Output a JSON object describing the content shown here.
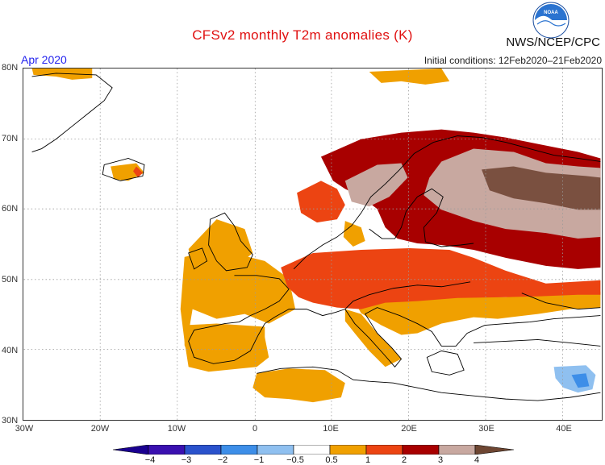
{
  "header": {
    "title": "CFSv2 monthly T2m anomalies (K)",
    "period": "Apr 2020",
    "initial_conditions": "Initial conditions: 12Feb2020–21Feb2020",
    "agency": "NWS/NCEP/CPC",
    "logo_text": "NOAA",
    "logo_icon": "noaa-logo-icon"
  },
  "map": {
    "projection": "lat-lon",
    "lat_ticks": [
      "80N",
      "70N",
      "60N",
      "50N",
      "40N",
      "30N"
    ],
    "lon_ticks": [
      "30W",
      "20W",
      "10W",
      "0",
      "10E",
      "20E",
      "30E",
      "40E"
    ],
    "lon_range": [
      -30,
      48
    ],
    "lat_range": [
      30,
      80
    ],
    "gridlines": "dotted"
  },
  "legend": {
    "labels": [
      "−4",
      "−3",
      "−2",
      "−1",
      "−0.5",
      "0.5",
      "1",
      "2",
      "3",
      "4"
    ],
    "colors": [
      "#3a10b0",
      "#2a52cc",
      "#3d8ee8",
      "#8fc0f0",
      "#ffffff",
      "#f0a000",
      "#ec4412",
      "#a80000",
      "#c8a8a0",
      "#7a5040"
    ],
    "low_end_color": "#1a0090",
    "high_end_color": "#6e4632"
  },
  "colors": {
    "title": "#e01010",
    "period": "#2323ee",
    "anom_0_5_1": "#f0a000",
    "anom_1_2": "#ec4412",
    "anom_2_3": "#a80000",
    "anom_3_4": "#c8a8a0",
    "anom_4_plus": "#7a5040",
    "anom_neg_0_5_1": "#8fc0f0",
    "anom_neg_1_2": "#3d8ee8"
  }
}
